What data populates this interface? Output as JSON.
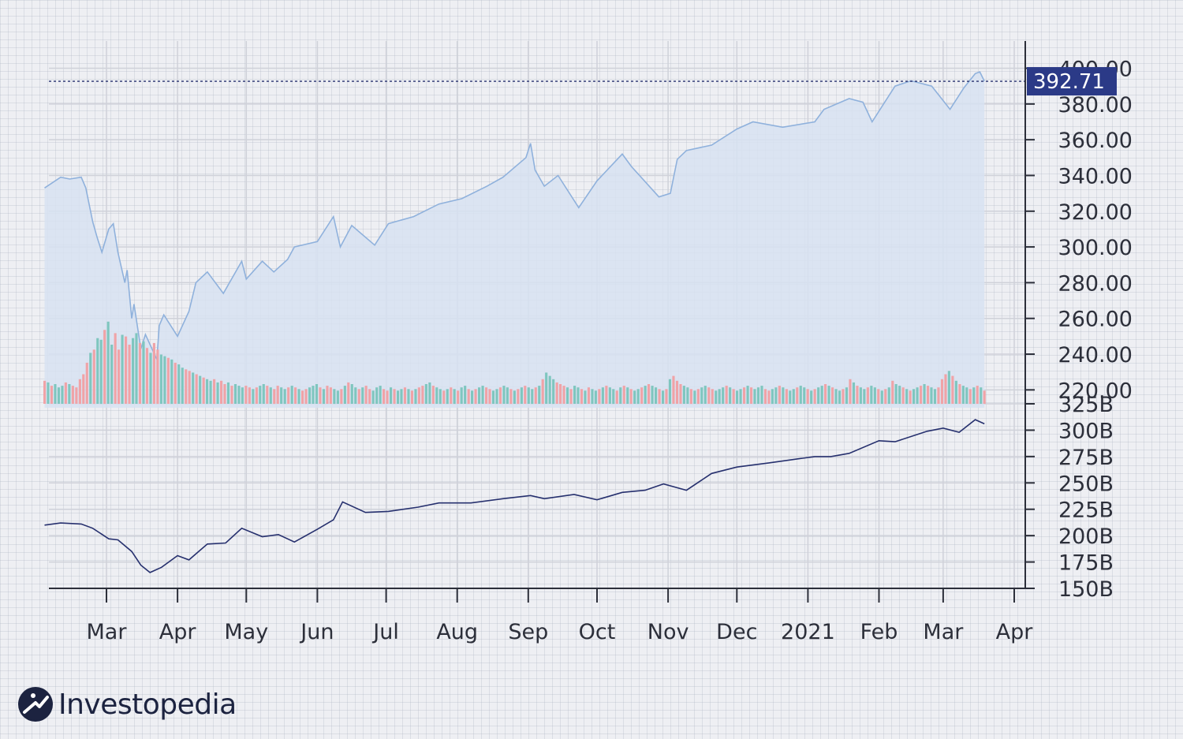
{
  "brand": {
    "name": "Investopedia",
    "colors": {
      "dark": "#1c2340",
      "accent": "#2b3a87"
    }
  },
  "colors": {
    "price_line": "#8fb1dc",
    "price_fill": "#d7e2f1",
    "volume_up": "#7fc6bf",
    "volume_down": "#f0a3a7",
    "market_cap_line": "#26306e",
    "price_tag_bg": "#2b3a87",
    "grid": "#cfd1d9",
    "axis": "#2c2f3a"
  },
  "chart_data": [
    {
      "type": "area",
      "name": "price",
      "grid": true,
      "x_tick_labels": [
        "Mar",
        "Apr",
        "May",
        "Jun",
        "Jul",
        "Aug",
        "Sep",
        "Oct",
        "Nov",
        "Dec",
        "2021",
        "Feb",
        "Mar",
        "Apr"
      ],
      "y_tick_labels": [
        "400.00",
        "380.00",
        "360.00",
        "340.00",
        "320.00",
        "300.00",
        "280.00",
        "260.00",
        "240.00",
        "220.00"
      ],
      "ylim": [
        210,
        402
      ],
      "last_value_label": "392.71",
      "last_value": 392.71,
      "x": [
        "2020-02-03",
        "2020-02-10",
        "2020-02-14",
        "2020-02-19",
        "2020-02-21",
        "2020-02-24",
        "2020-02-26",
        "2020-02-28",
        "2020-03-02",
        "2020-03-04",
        "2020-03-06",
        "2020-03-09",
        "2020-03-10",
        "2020-03-12",
        "2020-03-13",
        "2020-03-16",
        "2020-03-18",
        "2020-03-23",
        "2020-03-24",
        "2020-03-26",
        "2020-03-30",
        "2020-04-01",
        "2020-04-06",
        "2020-04-09",
        "2020-04-14",
        "2020-04-21",
        "2020-04-29",
        "2020-05-01",
        "2020-05-08",
        "2020-05-13",
        "2020-05-19",
        "2020-05-22",
        "2020-06-01",
        "2020-06-08",
        "2020-06-11",
        "2020-06-16",
        "2020-06-26",
        "2020-07-02",
        "2020-07-13",
        "2020-07-24",
        "2020-08-03",
        "2020-08-14",
        "2020-08-21",
        "2020-08-31",
        "2020-09-02",
        "2020-09-04",
        "2020-09-08",
        "2020-09-14",
        "2020-09-23",
        "2020-10-01",
        "2020-10-12",
        "2020-10-16",
        "2020-10-28",
        "2020-11-02",
        "2020-11-05",
        "2020-11-09",
        "2020-11-20",
        "2020-12-01",
        "2020-12-08",
        "2020-12-21",
        "2021-01-04",
        "2021-01-08",
        "2021-01-19",
        "2021-01-25",
        "2021-01-29",
        "2021-02-08",
        "2021-02-15",
        "2021-02-24",
        "2021-03-04",
        "2021-03-10",
        "2021-03-15",
        "2021-03-17",
        "2021-03-19"
      ],
      "values": [
        333,
        339,
        338,
        339,
        333,
        314,
        305,
        297,
        310,
        313,
        297,
        280,
        287,
        260,
        268,
        243,
        251,
        237,
        256,
        262,
        254,
        250,
        264,
        280,
        286,
        274,
        292,
        282,
        292,
        286,
        293,
        300,
        303,
        317,
        300,
        312,
        301,
        313,
        317,
        324,
        327,
        334,
        339,
        350,
        358,
        343,
        334,
        340,
        322,
        337,
        352,
        345,
        328,
        330,
        349,
        354,
        357,
        366,
        370,
        367,
        370,
        377,
        383,
        381,
        370,
        390,
        393,
        390,
        377,
        389,
        397,
        398,
        392.71
      ],
      "area_fill": true
    },
    {
      "type": "bar",
      "name": "volume",
      "values": [
        28,
        26,
        22,
        24,
        20,
        22,
        26,
        24,
        22,
        20,
        30,
        36,
        50,
        62,
        66,
        80,
        78,
        90,
        100,
        72,
        86,
        66,
        84,
        82,
        72,
        80,
        86,
        74,
        76,
        68,
        62,
        74,
        66,
        60,
        58,
        56,
        54,
        50,
        48,
        44,
        42,
        40,
        38,
        36,
        34,
        32,
        30,
        28,
        30,
        26,
        28,
        24,
        26,
        22,
        24,
        22,
        20,
        22,
        20,
        18,
        20,
        22,
        24,
        22,
        20,
        18,
        22,
        20,
        18,
        20,
        22,
        20,
        18,
        16,
        18,
        20,
        22,
        24,
        20,
        18,
        22,
        20,
        18,
        16,
        18,
        22,
        26,
        24,
        20,
        18,
        20,
        22,
        18,
        16,
        20,
        22,
        18,
        16,
        20,
        18,
        16,
        18,
        20,
        18,
        16,
        18,
        20,
        22,
        24,
        26,
        22,
        20,
        18,
        16,
        18,
        20,
        18,
        16,
        20,
        22,
        18,
        16,
        18,
        20,
        22,
        20,
        18,
        16,
        18,
        20,
        22,
        20,
        18,
        16,
        18,
        20,
        22,
        20,
        18,
        20,
        22,
        30,
        38,
        34,
        30,
        26,
        24,
        22,
        20,
        18,
        22,
        20,
        18,
        16,
        20,
        18,
        16,
        18,
        20,
        22,
        20,
        18,
        16,
        20,
        22,
        20,
        18,
        16,
        18,
        20,
        22,
        24,
        22,
        20,
        18,
        16,
        18,
        30,
        34,
        28,
        24,
        22,
        20,
        18,
        16,
        18,
        20,
        22,
        20,
        18,
        16,
        18,
        20,
        22,
        20,
        18,
        16,
        18,
        20,
        22,
        20,
        18,
        20,
        22,
        18,
        16,
        18,
        20,
        22,
        20,
        18,
        16,
        18,
        20,
        22,
        20,
        18,
        16,
        18,
        20,
        22,
        24,
        22,
        20,
        18,
        16,
        18,
        20,
        30,
        26,
        22,
        20,
        18,
        20,
        22,
        20,
        18,
        16,
        18,
        20,
        28,
        24,
        22,
        20,
        18,
        16,
        18,
        20,
        22,
        24,
        22,
        20,
        18,
        20,
        30,
        36,
        40,
        34,
        28,
        24,
        22,
        20,
        18,
        20,
        22,
        20,
        16
      ],
      "up": [
        0,
        1,
        0,
        1,
        1,
        1,
        0,
        1,
        0,
        0,
        0,
        0,
        0,
        1,
        0,
        1,
        1,
        0,
        1,
        1,
        0,
        0,
        1,
        0,
        0,
        1,
        1,
        0,
        1,
        0,
        1,
        0,
        0,
        1,
        1,
        0,
        1,
        0,
        1,
        1,
        0,
        0,
        1,
        0,
        1,
        0,
        1,
        1,
        0,
        1,
        0,
        0,
        1,
        0,
        1,
        1,
        1,
        0,
        0,
        1,
        0,
        1,
        1,
        0,
        1,
        0,
        0,
        1,
        1,
        0,
        1,
        0,
        1,
        0,
        0,
        1,
        1,
        1,
        0,
        1,
        0,
        0,
        1,
        1,
        0,
        1,
        0,
        1,
        1,
        0,
        1,
        0,
        0,
        1,
        1,
        1,
        0,
        0,
        1,
        0,
        1,
        1,
        0,
        1,
        0,
        1,
        0,
        0,
        1,
        1,
        0,
        1,
        1,
        0,
        1,
        0,
        1,
        0,
        1,
        1,
        0,
        1,
        0,
        1,
        1,
        0,
        0,
        1,
        1,
        0,
        1,
        1,
        0,
        1,
        0,
        1,
        0,
        1,
        1,
        0,
        1,
        0,
        1,
        1,
        1,
        0,
        0,
        0,
        1,
        0,
        1,
        1,
        0,
        1,
        0,
        1,
        1,
        0,
        1,
        0,
        1,
        1,
        0,
        1,
        0,
        1,
        0,
        1,
        1,
        0,
        1,
        0,
        1,
        1,
        0,
        1,
        0,
        1,
        0,
        0,
        0,
        1,
        1,
        0,
        1,
        0,
        1,
        1,
        0,
        0,
        1,
        1,
        1,
        0,
        1,
        0,
        1,
        1,
        0,
        1,
        0,
        1,
        1,
        1,
        0,
        0,
        1,
        1,
        0,
        1,
        0,
        1,
        1,
        0,
        1,
        1,
        0,
        1,
        0,
        1,
        1,
        0,
        1,
        0,
        1,
        1,
        0,
        1,
        0,
        1,
        0,
        1,
        1,
        0,
        1,
        1,
        0,
        1,
        0,
        1,
        0,
        1,
        1,
        0,
        1,
        0,
        1,
        1,
        0,
        1,
        0,
        1,
        1,
        0,
        0,
        0,
        1,
        0,
        1,
        0,
        1,
        1,
        0,
        1,
        0,
        1,
        0,
        0,
        1,
        1,
        0,
        1,
        1
      ],
      "ylim": [
        0,
        120
      ]
    },
    {
      "type": "line",
      "name": "market_cap",
      "grid": true,
      "y_tick_labels": [
        "325B",
        "300B",
        "275B",
        "250B",
        "225B",
        "200B",
        "175B",
        "150B"
      ],
      "ylim": [
        150,
        325
      ],
      "x": [
        "2020-02-03",
        "2020-02-10",
        "2020-02-19",
        "2020-02-24",
        "2020-03-02",
        "2020-03-06",
        "2020-03-12",
        "2020-03-16",
        "2020-03-20",
        "2020-03-25",
        "2020-04-01",
        "2020-04-06",
        "2020-04-14",
        "2020-04-22",
        "2020-04-29",
        "2020-05-08",
        "2020-05-15",
        "2020-05-22",
        "2020-06-01",
        "2020-06-08",
        "2020-06-12",
        "2020-06-22",
        "2020-07-02",
        "2020-07-15",
        "2020-07-24",
        "2020-08-07",
        "2020-08-21",
        "2020-09-02",
        "2020-09-08",
        "2020-09-21",
        "2020-10-01",
        "2020-10-12",
        "2020-10-22",
        "2020-10-30",
        "2020-11-09",
        "2020-11-20",
        "2020-12-01",
        "2020-12-15",
        "2021-01-04",
        "2021-01-11",
        "2021-01-19",
        "2021-02-01",
        "2021-02-08",
        "2021-02-22",
        "2021-03-01",
        "2021-03-08",
        "2021-03-15",
        "2021-03-19"
      ],
      "values": [
        210,
        212,
        211,
        207,
        197,
        196,
        185,
        172,
        165,
        170,
        181,
        177,
        192,
        193,
        207,
        199,
        201,
        194,
        206,
        215,
        232,
        222,
        223,
        227,
        231,
        231,
        235,
        238,
        235,
        239,
        234,
        241,
        243,
        249,
        243,
        259,
        265,
        269,
        275,
        275,
        278,
        290,
        289,
        299,
        302,
        298,
        310,
        306
      ]
    }
  ]
}
